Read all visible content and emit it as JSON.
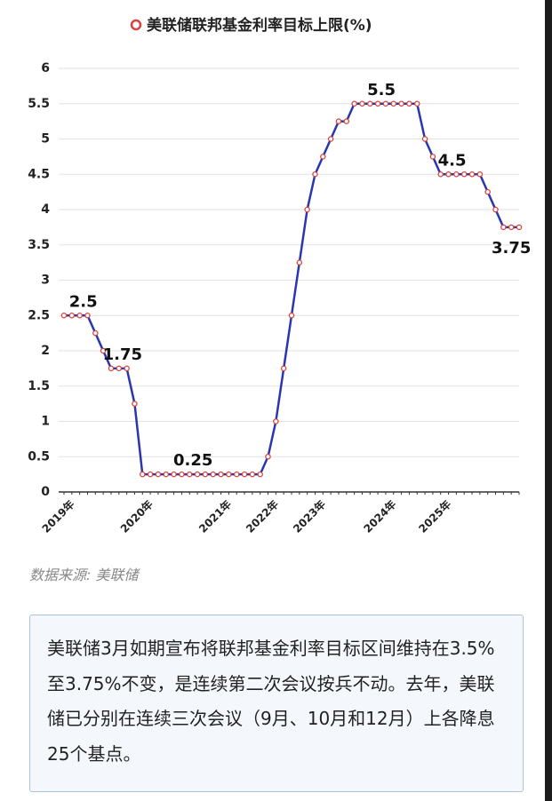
{
  "chart_data": {
    "type": "line",
    "title": "美联储联邦基金利率目标上限(%)",
    "categories": [
      "2019年",
      null,
      null,
      null,
      null,
      null,
      null,
      null,
      null,
      null,
      "2020年",
      null,
      null,
      null,
      null,
      null,
      null,
      null,
      null,
      null,
      "2021年",
      null,
      null,
      null,
      null,
      null,
      "2022年",
      null,
      null,
      null,
      null,
      null,
      "2023年",
      null,
      null,
      null,
      null,
      null,
      null,
      null,
      null,
      "2024年",
      null,
      null,
      null,
      null,
      null,
      null,
      "2025年",
      null,
      null,
      null,
      null,
      null,
      null,
      null,
      null,
      null,
      null
    ],
    "series": [
      {
        "name": "美联储联邦基金利率目标上限(%)",
        "color": "#2a35b0",
        "marker_color": "#d9413a",
        "values": [
          2.5,
          2.5,
          2.5,
          2.5,
          2.25,
          2.0,
          1.75,
          1.75,
          1.75,
          1.25,
          0.25,
          0.25,
          0.25,
          0.25,
          0.25,
          0.25,
          0.25,
          0.25,
          0.25,
          0.25,
          0.25,
          0.25,
          0.25,
          0.25,
          0.25,
          0.25,
          0.5,
          1.0,
          1.75,
          2.5,
          3.25,
          4.0,
          4.5,
          4.75,
          5.0,
          5.25,
          5.25,
          5.5,
          5.5,
          5.5,
          5.5,
          5.5,
          5.5,
          5.5,
          5.5,
          5.5,
          5.0,
          4.75,
          4.5,
          4.5,
          4.5,
          4.5,
          4.5,
          4.5,
          4.25,
          4.0,
          3.75,
          3.75,
          3.75
        ],
        "value_labels": [
          null,
          null,
          "2.5",
          null,
          null,
          null,
          null,
          "1.75",
          null,
          null,
          null,
          null,
          null,
          null,
          null,
          null,
          "0.25",
          null,
          null,
          null,
          null,
          null,
          null,
          null,
          null,
          null,
          null,
          null,
          null,
          null,
          null,
          null,
          null,
          null,
          null,
          null,
          null,
          null,
          null,
          null,
          "5.5",
          null,
          null,
          null,
          null,
          null,
          null,
          null,
          null,
          "4.5",
          null,
          null,
          null,
          null,
          null,
          null,
          null,
          "3.75",
          null
        ]
      }
    ],
    "ylim": [
      0,
      6
    ],
    "yticks": [
      0,
      0.5,
      1,
      1.5,
      2,
      2.5,
      3,
      3.5,
      4,
      4.5,
      5,
      5.5,
      6
    ],
    "grid": true
  },
  "source": "数据来源: 美联储",
  "note": "美联储3月如期宣布将联邦基金利率目标区间维持在3.5%至3.75%不变，是连续第二次会议按兵不动。去年，美联储已分别在连续三次会议（9月、10月和12月）上各降息25个基点。"
}
